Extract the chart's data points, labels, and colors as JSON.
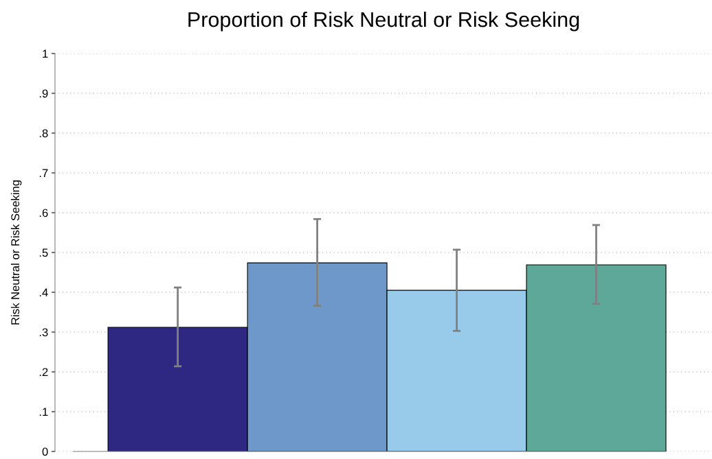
{
  "chart_data": {
    "type": "bar",
    "title": "Proportion of Risk Neutral or Risk Seeking",
    "ylabel": "Risk Neutral or Risk Seeking",
    "categories": [
      null,
      null,
      null,
      null
    ],
    "values": [
      0.312,
      0.474,
      0.405,
      0.469
    ],
    "colors": [
      "#2e2882",
      "#6e98c9",
      "#97cbe9",
      "#5ea899"
    ],
    "errors": [
      [
        0.214,
        0.412
      ],
      [
        0.366,
        0.584
      ],
      [
        0.303,
        0.507
      ],
      [
        0.371,
        0.569
      ]
    ],
    "ylim": [
      0,
      1
    ],
    "yticks": [
      0,
      {
        "value": 0.1,
        "label": ".1"
      },
      {
        "value": 0.2,
        "label": ".2"
      },
      {
        "value": 0.3,
        "label": ".3"
      },
      {
        "value": 0.4,
        "label": ".4"
      },
      {
        "value": 0.5,
        "label": ".5"
      },
      {
        "value": 0.6,
        "label": ".6"
      },
      {
        "value": 0.7,
        "label": ".7"
      },
      {
        "value": 0.8,
        "label": ".8"
      },
      {
        "value": 0.9,
        "label": ".9"
      },
      1
    ],
    "grid": "y",
    "legend": false
  }
}
